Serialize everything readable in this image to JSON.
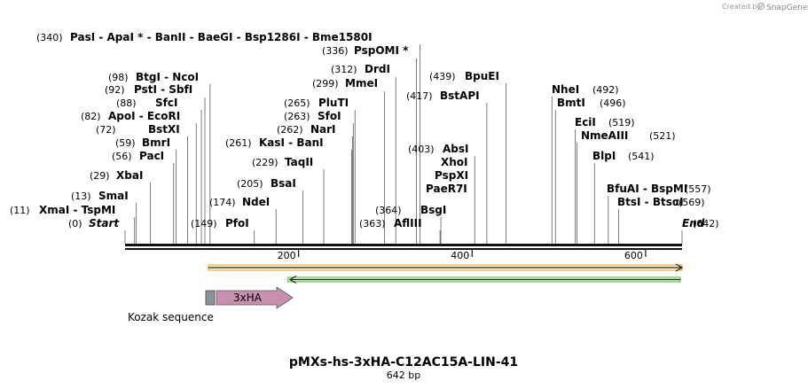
{
  "credit": {
    "prefix": "Created by",
    "brand": "SnapGene"
  },
  "plasmid": {
    "name": "pMXs-hs-3xHA-C12AC15A-LIN-41",
    "length_label": "642 bp",
    "length": 642
  },
  "colors": {
    "backbone": "#111111",
    "orange_arrow": "#f0a020",
    "green_arrow": "#44bb22",
    "hatag": "#c98fae",
    "kozak_box": "#8a949a"
  },
  "sites": [
    {
      "name": "PasI - ApaI * - BanII - BaeGI - Bsp1286I - Bme1580I",
      "pos_label": "(340)",
      "pos": 340
    },
    {
      "name": "PspOMI *",
      "pos_label": "(336)",
      "pos": 336
    },
    {
      "name": "DrdI",
      "pos_label": "(312)",
      "pos": 312
    },
    {
      "name": "MmeI",
      "pos_label": "(299)",
      "pos": 299
    },
    {
      "name": "BtgI - NcoI",
      "pos_label": "(98)",
      "pos": 98
    },
    {
      "name": "PstI - SbfI",
      "pos_label": "(92)",
      "pos": 92
    },
    {
      "name": "SfcI",
      "pos_label": "(88)",
      "pos": 88
    },
    {
      "name": "ApoI - EcoRI",
      "pos_label": "(82)",
      "pos": 82
    },
    {
      "name": "BstXI",
      "pos_label": "(72)",
      "pos": 72
    },
    {
      "name": "BmrI",
      "pos_label": "(59)",
      "pos": 59
    },
    {
      "name": "PacI",
      "pos_label": "(56)",
      "pos": 56
    },
    {
      "name": "XbaI",
      "pos_label": "(29)",
      "pos": 29
    },
    {
      "name": "SmaI",
      "pos_label": "(13)",
      "pos": 13
    },
    {
      "name": "XmaI - TspMI",
      "pos_label": "(11)",
      "pos": 11
    },
    {
      "name": "Start",
      "pos_label": "(0)",
      "pos": 0
    },
    {
      "name": "PluTI",
      "pos_label": "(265)",
      "pos": 265
    },
    {
      "name": "SfoI",
      "pos_label": "(263)",
      "pos": 263
    },
    {
      "name": "NarI",
      "pos_label": "(262)",
      "pos": 262
    },
    {
      "name": "KasI - BanI",
      "pos_label": "(261)",
      "pos": 261
    },
    {
      "name": "TaqII",
      "pos_label": "(229)",
      "pos": 229
    },
    {
      "name": "BsaI",
      "pos_label": "(205)",
      "pos": 205
    },
    {
      "name": "NdeI",
      "pos_label": "(174)",
      "pos": 174
    },
    {
      "name": "PfoI",
      "pos_label": "(149)",
      "pos": 149
    },
    {
      "name": "BpuEI",
      "pos_label": "(439)",
      "pos": 439
    },
    {
      "name": "BstAPI",
      "pos_label": "(417)",
      "pos": 417
    },
    {
      "name": "AbsI",
      "pos_label": "(403)",
      "pos": 403
    },
    {
      "name": "XhoI",
      "pos_label": "",
      "pos": 403
    },
    {
      "name": "PspXI",
      "pos_label": "",
      "pos": 403
    },
    {
      "name": "PaeR7I",
      "pos_label": "",
      "pos": 403
    },
    {
      "name": "BsgI",
      "pos_label": "(364)",
      "pos": 364
    },
    {
      "name": "AflIII",
      "pos_label": "(363)",
      "pos": 363
    },
    {
      "name": "NheI",
      "pos_label": "(492)",
      "pos": 492
    },
    {
      "name": "BmtI",
      "pos_label": "(496)",
      "pos": 496
    },
    {
      "name": "EciI",
      "pos_label": "(519)",
      "pos": 519
    },
    {
      "name": "NmeAIII",
      "pos_label": "(521)",
      "pos": 521
    },
    {
      "name": "BlpI",
      "pos_label": "(541)",
      "pos": 541
    },
    {
      "name": "BfuAI - BspMI",
      "pos_label": "(557)",
      "pos": 557
    },
    {
      "name": "BtsI - BtsαI",
      "pos_label": "(569)",
      "pos": 569
    },
    {
      "name": "End",
      "pos_label": "(642)",
      "pos": 642
    }
  ],
  "ticks": [
    {
      "value": 200,
      "label": "200"
    },
    {
      "value": 400,
      "label": "400"
    },
    {
      "value": 600,
      "label": "600"
    }
  ],
  "features": [
    {
      "name": "orange-arrow",
      "label": "",
      "start": 96,
      "end": 642,
      "direction": "forward"
    },
    {
      "name": "green-arrow",
      "label": "",
      "start": 190,
      "end": 640,
      "direction": "reverse"
    },
    {
      "name": "kozak-sequence",
      "label": "Kozak sequence",
      "start": 92,
      "end": 103
    },
    {
      "name": "3xha-tag",
      "label": "3xHA",
      "start": 104,
      "end": 193,
      "direction": "forward"
    }
  ]
}
